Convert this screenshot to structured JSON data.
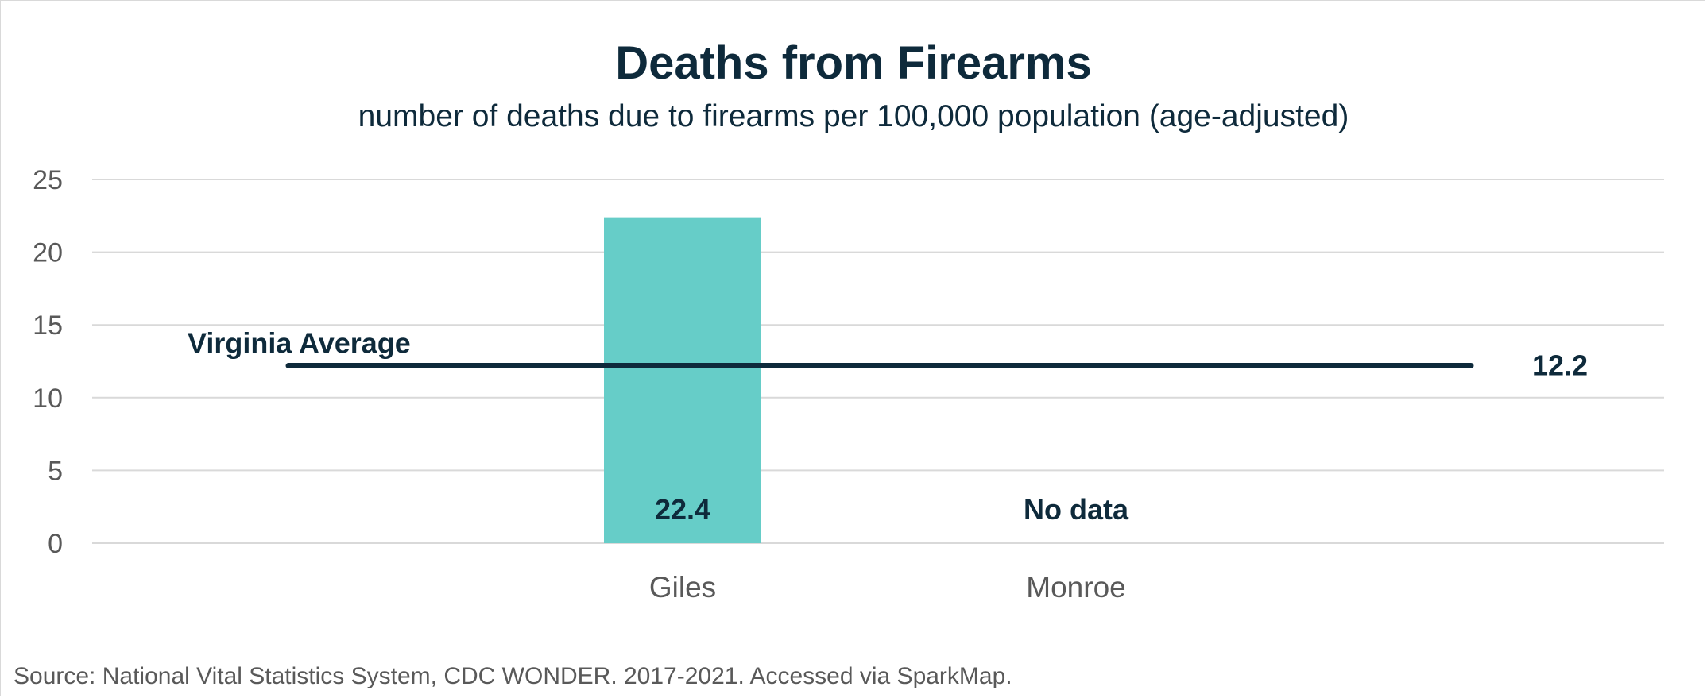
{
  "chart_data": {
    "type": "bar",
    "title": "Deaths from Firearms",
    "subtitle": "number of deaths due to firearms per 100,000 population (age-adjusted)",
    "categories": [
      "Giles",
      "Monroe"
    ],
    "values": [
      22.4,
      null
    ],
    "value_labels": [
      "22.4",
      "No data"
    ],
    "ylim": [
      0,
      25
    ],
    "yticks": [
      0,
      5,
      10,
      15,
      20,
      25
    ],
    "grid": true,
    "bar_color": "#66cdc8",
    "reference_line": {
      "label": "Virginia Average",
      "value": 12.2,
      "value_label": "12.2",
      "color": "#0e2a3b"
    },
    "source": "Source:  National Vital Statistics System, CDC WONDER. 2017-2021. Accessed via SparkMap."
  }
}
